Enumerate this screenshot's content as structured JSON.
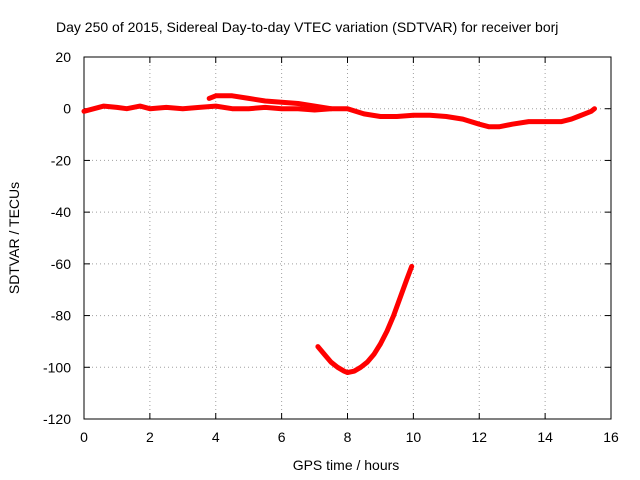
{
  "chart_data": {
    "type": "line",
    "title": "Day 250 of 2015, Sidereal Day-to-day VTEC variation (SDTVAR) for receiver borj",
    "xlabel": "GPS time / hours",
    "ylabel": "SDTVAR / TECUs",
    "xlim": [
      0,
      16
    ],
    "ylim": [
      -120,
      20
    ],
    "xticks": [
      0,
      2,
      4,
      6,
      8,
      10,
      12,
      14,
      16
    ],
    "yticks": [
      20,
      0,
      -20,
      -40,
      -60,
      -80,
      -100,
      -120
    ],
    "grid": true,
    "legend": "none",
    "color": "#ff0000",
    "series": [
      {
        "name": "main-track",
        "x": [
          0.0,
          0.3,
          0.6,
          1.0,
          1.3,
          1.7,
          2.0,
          2.5,
          3.0,
          3.5,
          4.0,
          4.5,
          5.0,
          5.5,
          6.0,
          6.5,
          7.0,
          7.5,
          8.0,
          8.5,
          9.0,
          9.5,
          10.0,
          10.5,
          11.0,
          11.5,
          12.0,
          12.3,
          12.6,
          13.0,
          13.5,
          14.0,
          14.5,
          14.8,
          15.0,
          15.2,
          15.4,
          15.5
        ],
        "y": [
          -1,
          0,
          1,
          0.5,
          0,
          1,
          0,
          0.5,
          0,
          0.5,
          1,
          0,
          0,
          0.5,
          0,
          0,
          -0.5,
          0,
          0,
          -2,
          -3,
          -3,
          -2.5,
          -2.5,
          -3,
          -4,
          -6,
          -7,
          -7,
          -6,
          -5,
          -5,
          -5,
          -4,
          -3,
          -2,
          -1,
          0
        ]
      },
      {
        "name": "upper-branch",
        "x": [
          3.8,
          4.0,
          4.2,
          4.5,
          5.0,
          5.5,
          6.0,
          6.5,
          7.0,
          7.5
        ],
        "y": [
          4,
          5,
          5,
          5,
          4,
          3,
          2.5,
          2,
          1,
          0
        ]
      },
      {
        "name": "lower-arc",
        "x": [
          7.1,
          7.3,
          7.5,
          7.7,
          7.9,
          8.0,
          8.2,
          8.4,
          8.6,
          8.8,
          9.0,
          9.2,
          9.4,
          9.6,
          9.8,
          9.95
        ],
        "y": [
          -92,
          -95,
          -98,
          -100,
          -101.5,
          -102,
          -101.5,
          -100,
          -98,
          -95,
          -91,
          -86,
          -80,
          -73,
          -66,
          -61
        ]
      }
    ]
  }
}
